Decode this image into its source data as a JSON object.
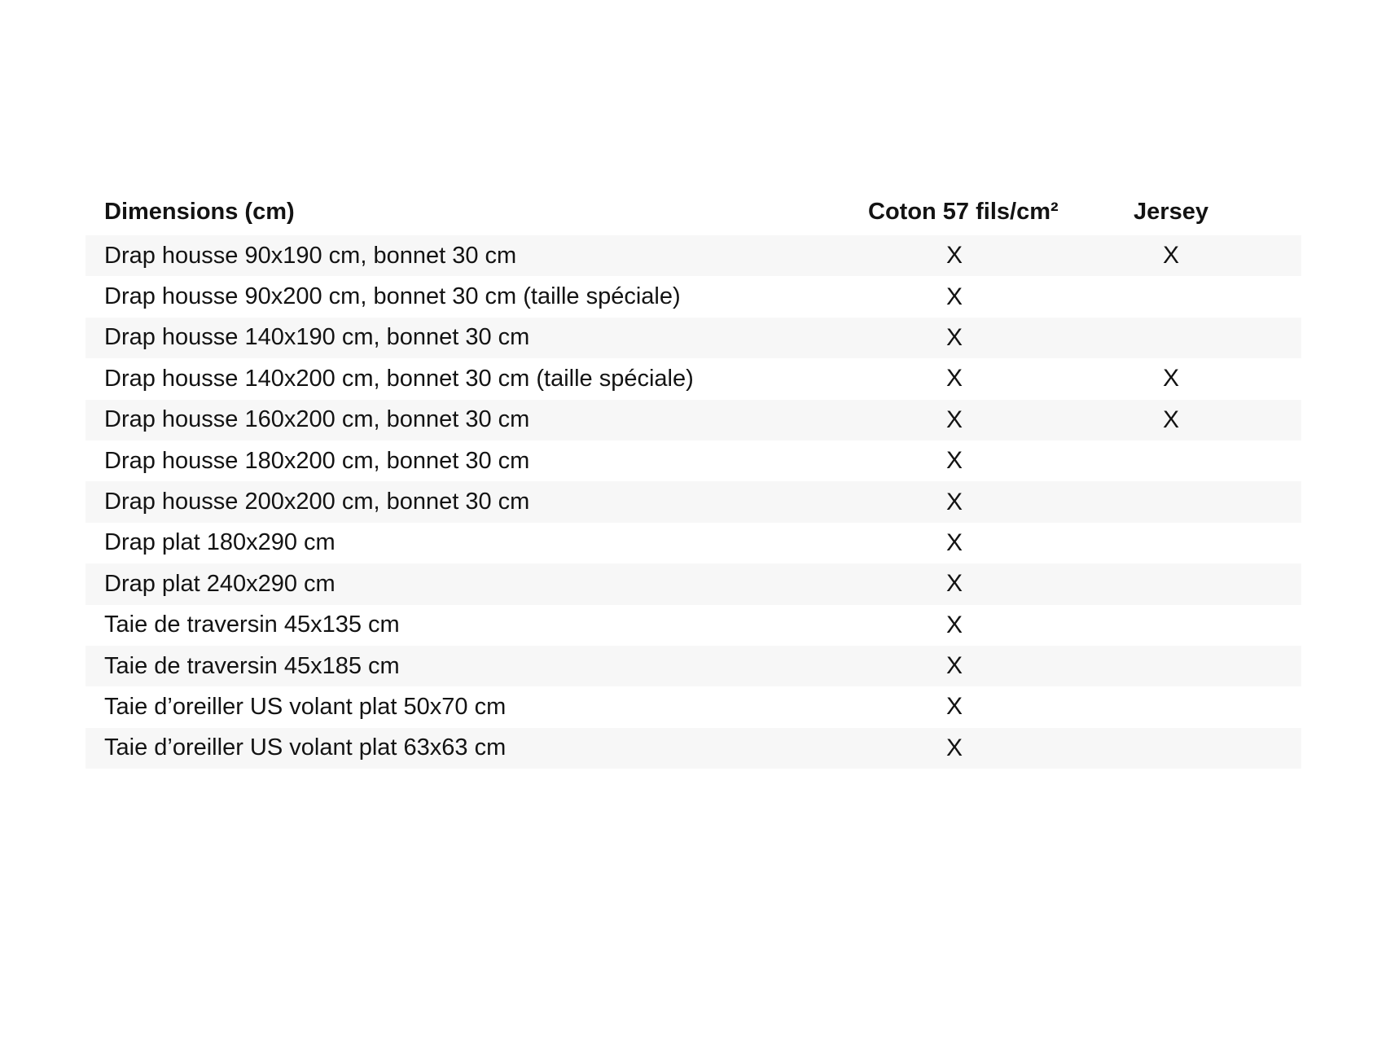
{
  "chart_data": {
    "type": "table",
    "columns": [
      "Dimensions (cm)",
      "Coton 57 fils/cm²",
      "Jersey"
    ],
    "mark_symbol": "X",
    "rows": [
      {
        "dimension": "Drap housse 90x190 cm, bonnet 30 cm",
        "coton": "X",
        "jersey": "X"
      },
      {
        "dimension": "Drap housse 90x200 cm, bonnet 30 cm (taille spéciale)",
        "coton": "X",
        "jersey": ""
      },
      {
        "dimension": "Drap housse 140x190 cm, bonnet 30 cm",
        "coton": "X",
        "jersey": ""
      },
      {
        "dimension": "Drap housse 140x200 cm, bonnet 30 cm (taille spéciale)",
        "coton": "X",
        "jersey": "X"
      },
      {
        "dimension": "Drap housse 160x200 cm, bonnet 30 cm",
        "coton": "X",
        "jersey": "X"
      },
      {
        "dimension": "Drap housse 180x200 cm, bonnet 30 cm",
        "coton": "X",
        "jersey": ""
      },
      {
        "dimension": "Drap housse 200x200 cm, bonnet 30 cm",
        "coton": "X",
        "jersey": ""
      },
      {
        "dimension": "Drap plat 180x290 cm",
        "coton": "X",
        "jersey": ""
      },
      {
        "dimension": "Drap plat 240x290 cm",
        "coton": "X",
        "jersey": ""
      },
      {
        "dimension": "Taie de traversin 45x135 cm",
        "coton": "X",
        "jersey": ""
      },
      {
        "dimension": "Taie de traversin 45x185 cm",
        "coton": "X",
        "jersey": ""
      },
      {
        "dimension": "Taie d’oreiller US volant plat 50x70 cm",
        "coton": "X",
        "jersey": ""
      },
      {
        "dimension": "Taie d’oreiller US volant plat 63x63 cm",
        "coton": "X",
        "jersey": ""
      }
    ],
    "layout": {
      "striped": true,
      "stripe_color": "#f7f7f7",
      "text_color": "#131313",
      "background": "#ffffff",
      "first_row_striped": true
    }
  }
}
